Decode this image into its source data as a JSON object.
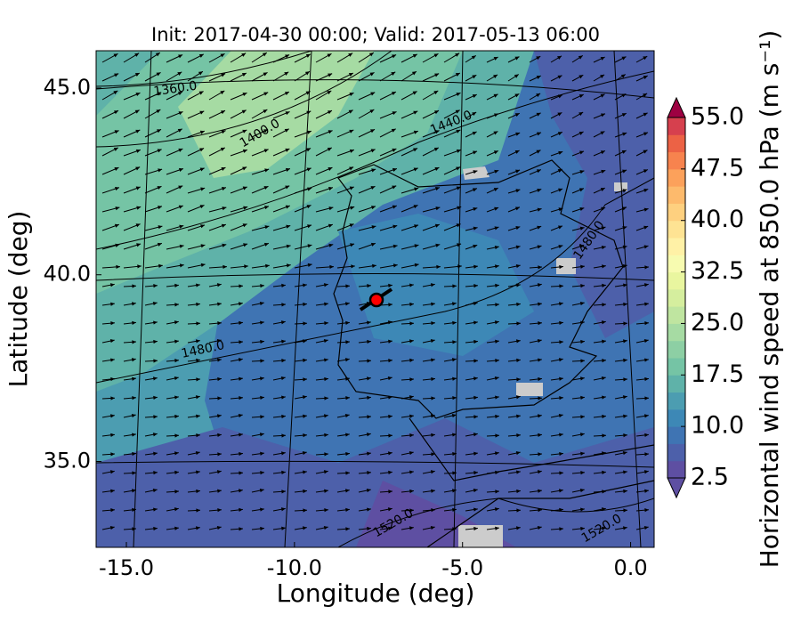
{
  "title": "Init: 2017-04-30 00:00; Valid: 2017-05-13 06:00",
  "x_axis": {
    "label": "Longitude (deg)",
    "lim": [
      -15.9,
      0.7
    ],
    "ticks": [
      {
        "value": -15,
        "label": "-15.0"
      },
      {
        "value": -10,
        "label": "-10.0"
      },
      {
        "value": -5,
        "label": "-5.0"
      },
      {
        "value": 0,
        "label": "0.0"
      }
    ]
  },
  "y_axis": {
    "label": "Latitude (deg)",
    "lim": [
      32.7,
      46.0
    ],
    "ticks": [
      {
        "value": 35,
        "label": "35.0"
      },
      {
        "value": 40,
        "label": "40.0"
      },
      {
        "value": 45,
        "label": "45.0"
      }
    ]
  },
  "colorbar": {
    "label": "Horizontal wind speed at 850.0 hPa (m s⁻¹)",
    "lim": [
      2.5,
      55
    ],
    "ticks": [
      2.5,
      {
        "value": 10,
        "label": "10.0"
      },
      17.5,
      {
        "value": 25,
        "label": "25.0"
      },
      32.5,
      {
        "value": 40,
        "label": "40.0"
      },
      47.5,
      {
        "value": 55,
        "label": "55.0"
      }
    ],
    "colors": [
      "#5e4fa2",
      "#4d60aa",
      "#3f74b3",
      "#3d88b6",
      "#4c9db1",
      "#5fb2a9",
      "#75c4a5",
      "#8dcfa4",
      "#a6dba3",
      "#bfe5a0",
      "#d5ee9e",
      "#e9f69f",
      "#f7fbb0",
      "#fff1a6",
      "#fee393",
      "#fed07f",
      "#fdba6c",
      "#fca15b",
      "#f7834e",
      "#ec6245",
      "#d6404e"
    ]
  },
  "contours": [
    {
      "value": 1360,
      "label": "1360.0"
    },
    {
      "value": 1400,
      "label": "1400.0"
    },
    {
      "value": 1440,
      "label": "1440.0"
    },
    {
      "value": 1480,
      "label": "1480.0"
    },
    {
      "value": 1480,
      "label": "1480.0"
    },
    {
      "value": 1520,
      "label": "1520.0"
    },
    {
      "value": 1520,
      "label": "1520.0"
    }
  ]
}
